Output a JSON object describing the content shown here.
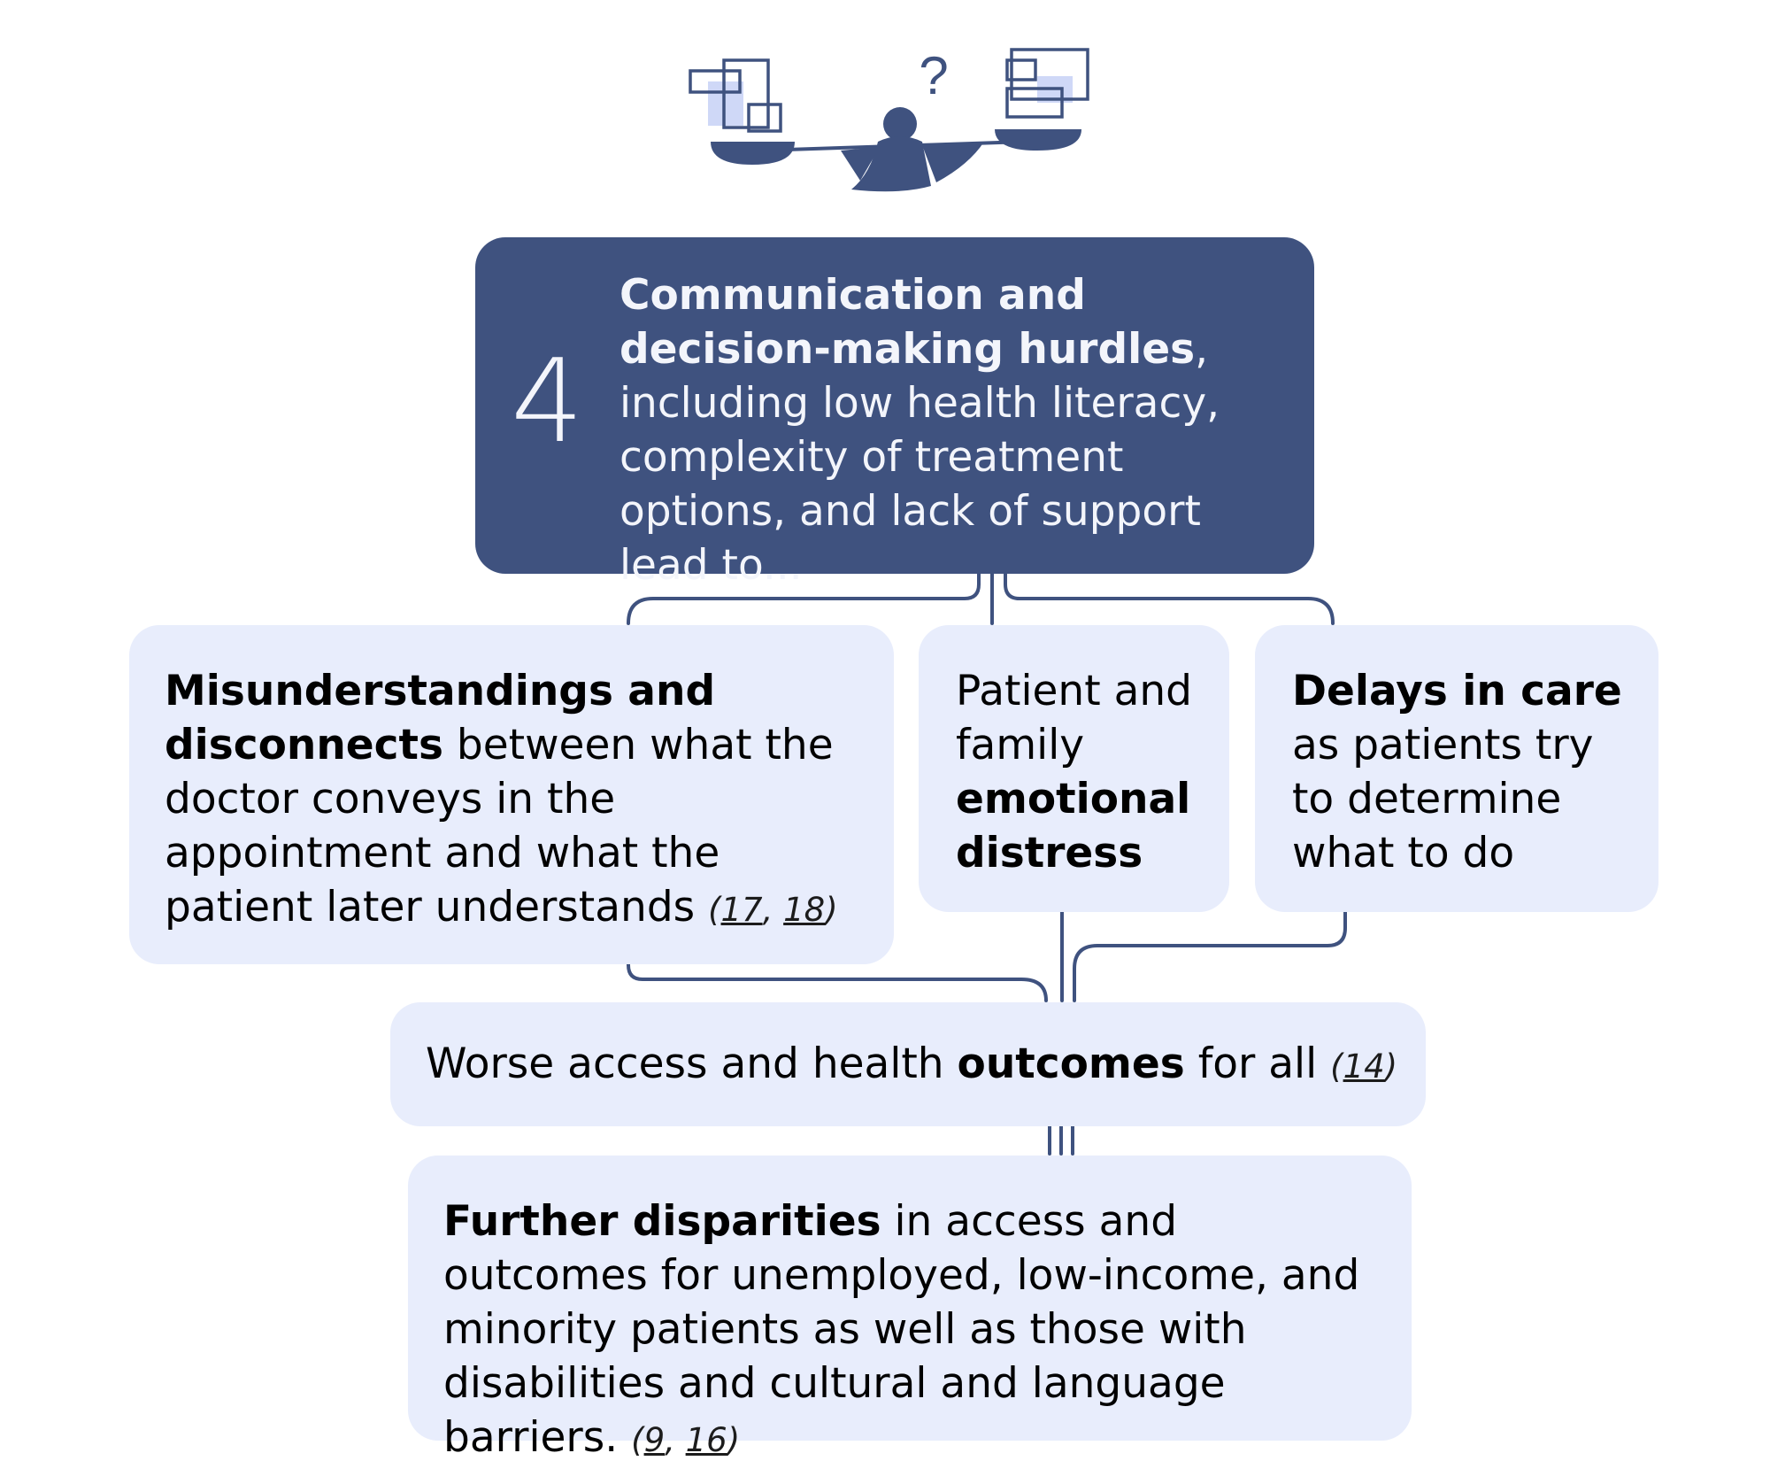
{
  "palette": {
    "primary_navy": "#3f527f",
    "light_box": "#e8edfc",
    "illustration_accent": "#cfd8f7"
  },
  "illustration": {
    "icon": "balance-scale-person-icon",
    "question_mark": "?"
  },
  "step": {
    "number": "4",
    "title_bold": "Communication and decision-making hurdles",
    "title_rest": ", including low health literacy, complexity of treatment options, and lack of support lead to..."
  },
  "effects": [
    {
      "bold": "Misunderstandings and disconnects",
      "rest": " between what the doctor conveys in the appointment and what the patient later understands ",
      "citations": [
        "17",
        "18"
      ]
    },
    {
      "lead": "Patient and family ",
      "bold": "emotional distress"
    },
    {
      "bold": "Delays in care",
      "rest": " as patients try to determine what to do"
    }
  ],
  "outcome": {
    "lead": "Worse access and health ",
    "bold": "outcomes",
    "rest": " for all ",
    "citations": [
      "14"
    ]
  },
  "disparities": {
    "bold": "Further disparities",
    "rest": " in access and outcomes for unemployed, low-income, and minority patients as well as those with disabilities and cultural and language barriers. ",
    "citations": [
      "9",
      "16"
    ]
  }
}
